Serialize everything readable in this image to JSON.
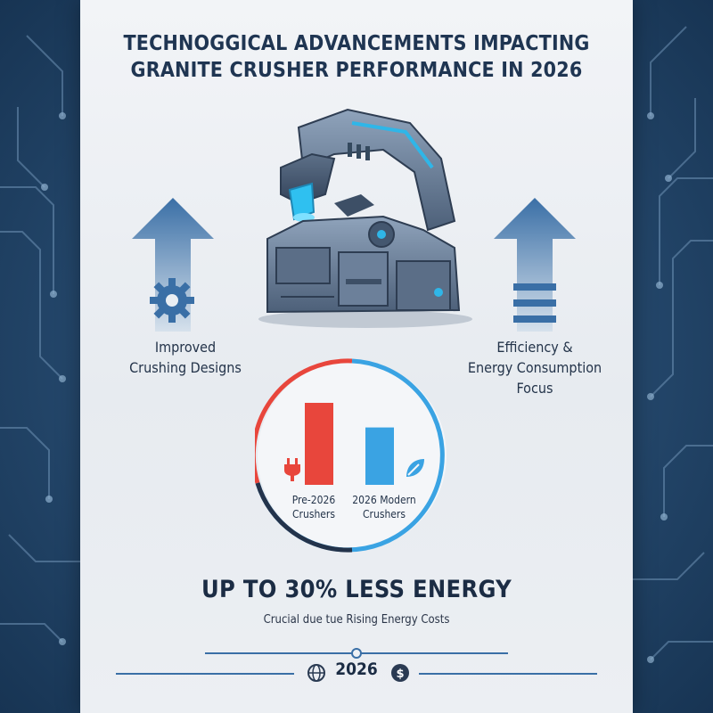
{
  "title": {
    "line1": "TECHNOGGICAL ADVANCEMENTS IMPACTING",
    "line2": "GRANITE CRUSHER PERFORMANCE IN 2026"
  },
  "left_feature": {
    "label_line1": "Improved",
    "label_line2": "Crushing Designs",
    "icon": "gear-icon"
  },
  "right_feature": {
    "label_line1": "Efficiency &",
    "label_line2": "Energy Consumption",
    "label_line3": "Focus",
    "icon": "lines-icon"
  },
  "comparison": {
    "bars": [
      {
        "label_line1": "Pre-2026",
        "label_line2": "Crushers",
        "color": "#e8463c",
        "relative_height": 1.0,
        "icon": "plug-icon"
      },
      {
        "label_line1": "2026 Modern",
        "label_line2": "Crushers",
        "color": "#3aa3e3",
        "relative_height": 0.7,
        "icon": "leaf-icon"
      }
    ]
  },
  "headline": "UP TO 30% LESS ENERGY",
  "subheadline": "Crucial due tue Rising Energy Costs",
  "footer": {
    "year": "2026",
    "left_icon": "globe-icon",
    "right_icon": "dollar-icon"
  },
  "colors": {
    "accent_red": "#e8463c",
    "accent_blue": "#3aa3e3",
    "arrow_blue": "#3a6fa6",
    "navy": "#1f3552"
  }
}
